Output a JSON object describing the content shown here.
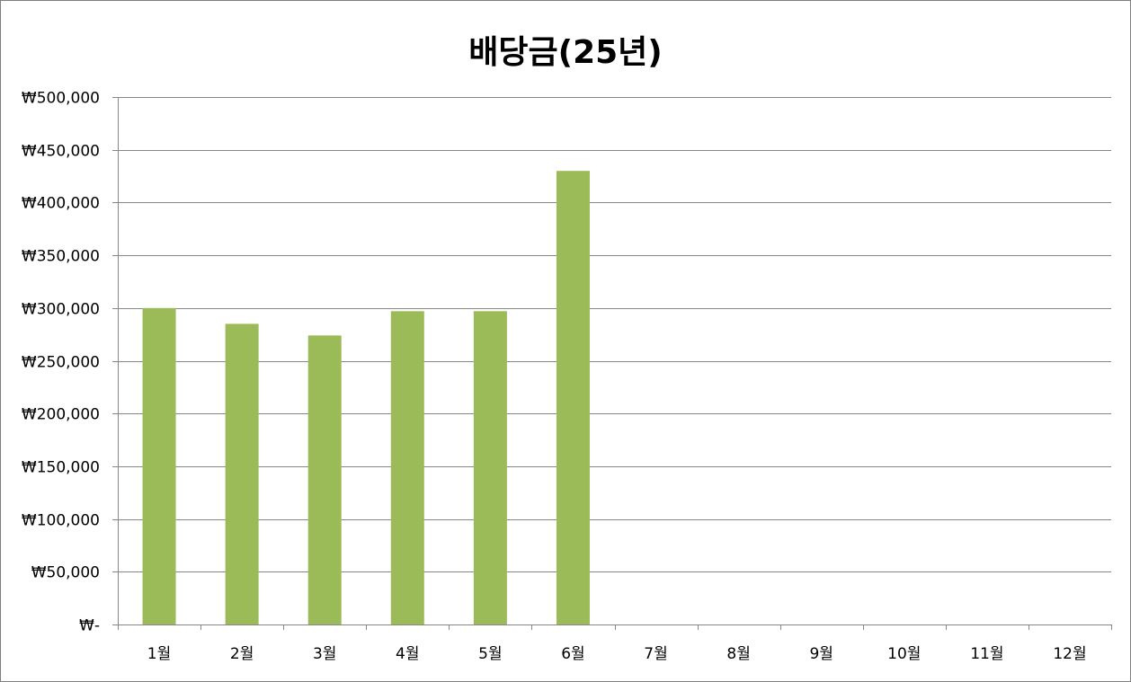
{
  "chart_data": {
    "type": "bar",
    "title": "배당금(25년)",
    "xlabel": "",
    "ylabel": "",
    "categories": [
      "1월",
      "2월",
      "3월",
      "4월",
      "5월",
      "6월",
      "7월",
      "8월",
      "9월",
      "10월",
      "11월",
      "12월"
    ],
    "values": [
      300000,
      285000,
      274000,
      297000,
      297000,
      430000,
      null,
      null,
      null,
      null,
      null,
      null
    ],
    "ylim": [
      0,
      500000
    ],
    "yticks": [
      0,
      50000,
      100000,
      150000,
      200000,
      250000,
      300000,
      350000,
      400000,
      450000,
      500000
    ],
    "ytick_labels": [
      "₩-",
      "₩50,000",
      "₩100,000",
      "₩150,000",
      "₩200,000",
      "₩250,000",
      "₩300,000",
      "₩350,000",
      "₩400,000",
      "₩450,000",
      "₩500,000"
    ],
    "grid": true,
    "legend": "none",
    "colors": {
      "bar": "#9bbb59",
      "grid": "#878787",
      "axis": "#878787"
    }
  }
}
